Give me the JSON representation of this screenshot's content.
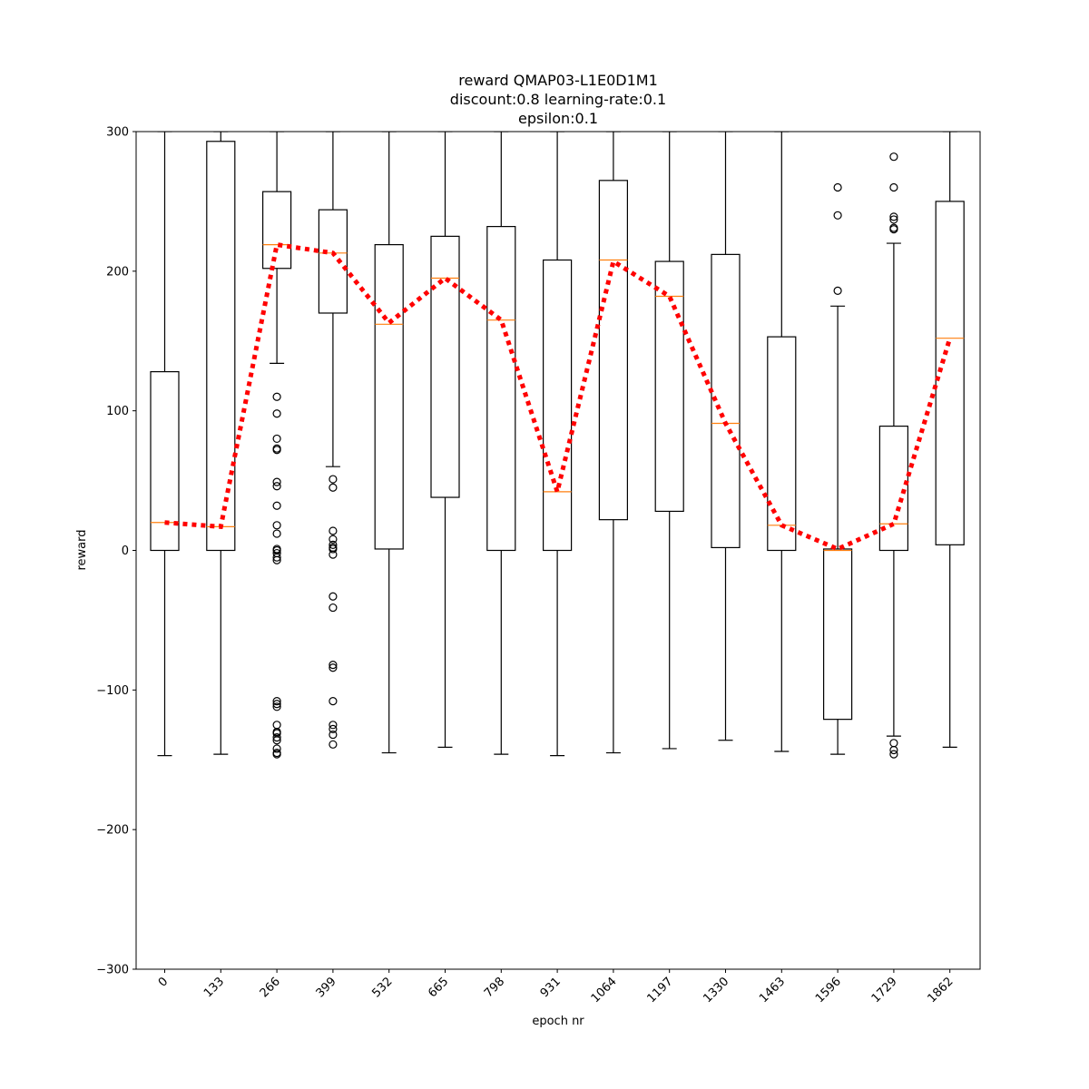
{
  "chart_data": {
    "type": "box",
    "title_lines": [
      "reward QMAP03-L1E0D1M1",
      "discount:0.8 learning-rate:0.1",
      "epsilon:0.1"
    ],
    "xlabel": "epoch nr",
    "ylabel": "reward",
    "ylim": [
      -300,
      300
    ],
    "yticks": [
      -300,
      -200,
      -100,
      0,
      100,
      200,
      300
    ],
    "ytick_labels": [
      "−300",
      "−200",
      "−100",
      "0",
      "100",
      "200",
      "300"
    ],
    "categories": [
      "0",
      "133",
      "266",
      "399",
      "532",
      "665",
      "798",
      "931",
      "1064",
      "1197",
      "1330",
      "1463",
      "1596",
      "1729",
      "1862"
    ],
    "boxes": [
      {
        "whisker_low": -147,
        "q1": 0,
        "median": 20,
        "q3": 128,
        "whisker_high": 300,
        "outliers": []
      },
      {
        "whisker_low": -146,
        "q1": 0,
        "median": 17,
        "q3": 293,
        "whisker_high": 300,
        "outliers": []
      },
      {
        "whisker_low": 134,
        "q1": 202,
        "median": 219,
        "q3": 257,
        "whisker_high": 300,
        "outliers": [
          110,
          98,
          80,
          73,
          72,
          49,
          46,
          32,
          18,
          12,
          1,
          0,
          -2,
          -5,
          -7,
          -108,
          -110,
          -112,
          -125,
          -130,
          -131,
          -134,
          -136,
          -142,
          -145,
          -146
        ]
      },
      {
        "whisker_low": 60,
        "q1": 170,
        "median": 213,
        "q3": 244,
        "whisker_high": 300,
        "outliers": [
          51,
          45,
          14,
          8,
          4,
          2,
          1,
          -3,
          -33,
          -41,
          -82,
          -84,
          -108,
          -125,
          -128,
          -132,
          -139
        ]
      },
      {
        "whisker_low": -145,
        "q1": 1,
        "median": 162,
        "q3": 219,
        "whisker_high": 300,
        "outliers": []
      },
      {
        "whisker_low": -141,
        "q1": 38,
        "median": 195,
        "q3": 225,
        "whisker_high": 300,
        "outliers": []
      },
      {
        "whisker_low": -146,
        "q1": 0,
        "median": 165,
        "q3": 232,
        "whisker_high": 300,
        "outliers": []
      },
      {
        "whisker_low": -147,
        "q1": 0,
        "median": 42,
        "q3": 208,
        "whisker_high": 300,
        "outliers": []
      },
      {
        "whisker_low": -145,
        "q1": 22,
        "median": 208,
        "q3": 265,
        "whisker_high": 300,
        "outliers": []
      },
      {
        "whisker_low": -142,
        "q1": 28,
        "median": 182,
        "q3": 207,
        "whisker_high": 300,
        "outliers": []
      },
      {
        "whisker_low": -136,
        "q1": 2,
        "median": 91,
        "q3": 212,
        "whisker_high": 300,
        "outliers": []
      },
      {
        "whisker_low": -144,
        "q1": 0,
        "median": 18,
        "q3": 153,
        "whisker_high": 300,
        "outliers": []
      },
      {
        "whisker_low": -146,
        "q1": -121,
        "median": 0,
        "q3": 1,
        "whisker_high": 175,
        "outliers": [
          260,
          240,
          186
        ]
      },
      {
        "whisker_low": -133,
        "q1": 0,
        "median": 19,
        "q3": 89,
        "whisker_high": 220,
        "outliers": [
          282,
          260,
          239,
          237,
          231,
          230,
          -138,
          -143,
          -146
        ]
      },
      {
        "whisker_low": -141,
        "q1": 4,
        "median": 152,
        "q3": 250,
        "whisker_high": 300,
        "outliers": []
      }
    ],
    "median_line": [
      20,
      17,
      219,
      213,
      163,
      195,
      165,
      42,
      207,
      182,
      91,
      18,
      1,
      19,
      152
    ],
    "colors": {
      "box": "#000000",
      "median": "#ff7f0e",
      "trend": "#ff0000",
      "outlier": "#000000"
    },
    "grid": false,
    "legend": "none"
  }
}
